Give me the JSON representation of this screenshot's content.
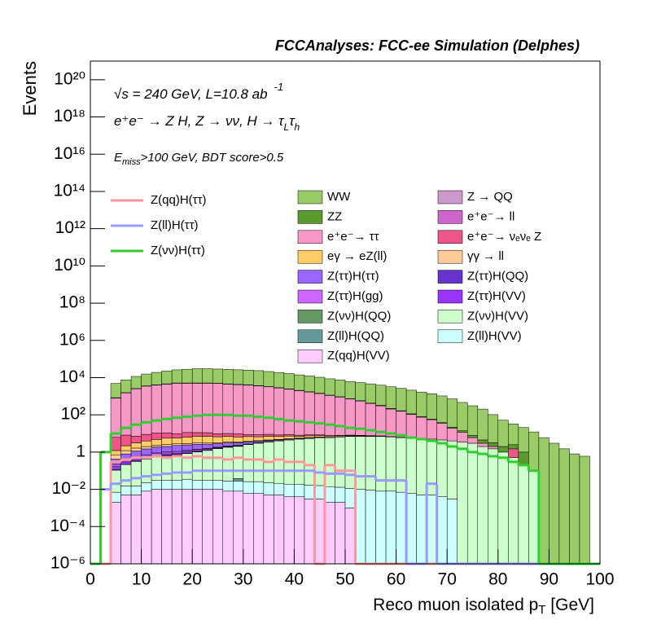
{
  "chart_data": {
    "type": "histogram",
    "stacked": true,
    "log_y": true,
    "title": "FCCAnalyses: FCC-ee Simulation (Delphes)",
    "y_label": "Events",
    "x_label": [
      "Reco muon isolated p",
      "T",
      " [GeV]"
    ],
    "annotations": [
      [
        "√s = 240 GeV, L=10.8 ab",
        "-1"
      ],
      [
        "e⁺e⁻ → Z H, Z → νν, H → τ",
        "L",
        "τ",
        "h"
      ],
      [
        "E",
        "miss",
        ">100 GeV, BDT score>0.5"
      ]
    ],
    "xlim": [
      0,
      100
    ],
    "xticks": [
      0,
      10,
      20,
      30,
      40,
      50,
      60,
      70,
      80,
      90,
      100
    ],
    "ylim": [
      1e-06,
      1e+21
    ],
    "yticks": [
      {
        "value": 1e-06,
        "label": "10⁻⁶"
      },
      {
        "value": 0.0001,
        "label": "10⁻⁴"
      },
      {
        "value": 0.01,
        "label": "10⁻²"
      },
      1,
      {
        "value": 100,
        "label": "10²"
      },
      {
        "value": 10000,
        "label": "10⁴"
      },
      {
        "value": 1000000.0,
        "label": "10⁶"
      },
      {
        "value": 100000000.0,
        "label": "10⁸"
      },
      {
        "value": 10000000000.0,
        "label": "10¹⁰"
      },
      {
        "value": 1000000000000.0,
        "label": "10¹²"
      },
      {
        "value": 100000000000000.0,
        "label": "10¹⁴"
      },
      {
        "value": 1e+16,
        "label": "10¹⁶"
      },
      {
        "value": 1e+18,
        "label": "10¹⁸"
      },
      {
        "value": 1e+20,
        "label": "10²⁰"
      }
    ],
    "bins": [
      0,
      2,
      4,
      6,
      8,
      10,
      12,
      14,
      16,
      18,
      20,
      22,
      24,
      26,
      28,
      30,
      32,
      34,
      36,
      38,
      40,
      42,
      44,
      46,
      48,
      50,
      52,
      54,
      56,
      58,
      60,
      62,
      64,
      66,
      68,
      70,
      72,
      74,
      76,
      78,
      80,
      82,
      84,
      86,
      88,
      90,
      92,
      94,
      96,
      98,
      100
    ],
    "series": [
      {
        "name": "WW",
        "color": "#99cc66",
        "values": [
          0,
          0,
          4000,
          6000,
          9000,
          12000,
          15000,
          18000,
          21000,
          23000,
          25000,
          25000,
          24000,
          23000,
          22000,
          21000,
          20000,
          18000,
          16000,
          14000,
          12000,
          10500,
          9000,
          7500,
          6500,
          5500,
          4800,
          4200,
          3600,
          3000,
          2500,
          2000,
          1600,
          1300,
          1000,
          700,
          450,
          300,
          200,
          100,
          50,
          30,
          20,
          12,
          6,
          3,
          1.5,
          0.8,
          0.6,
          0
        ]
      },
      {
        "name": "Z → QQ",
        "color": "#cc99cc",
        "values": [
          0,
          0,
          0.5,
          1,
          0.8,
          1,
          1.2,
          0.9,
          1,
          0.8,
          1,
          0.7,
          0.9,
          0.6,
          0.5,
          0.8,
          0.4,
          0.5,
          0.3,
          0.4,
          0.3,
          0.2,
          0.3,
          0.2,
          0.1,
          0.1,
          0,
          0,
          0,
          0,
          0,
          0,
          0,
          0,
          0,
          0,
          0,
          0,
          0,
          0,
          0,
          0,
          0,
          0,
          0,
          0,
          0,
          0,
          0,
          0
        ]
      },
      {
        "name": "ZZ",
        "color": "#5a9a2e",
        "values": [
          0,
          0,
          30,
          50,
          80,
          100,
          120,
          140,
          150,
          160,
          160,
          150,
          140,
          130,
          120,
          110,
          100,
          90,
          80,
          70,
          60,
          50,
          45,
          40,
          35,
          30,
          25,
          20,
          16,
          12,
          10,
          8,
          6,
          5,
          4,
          3,
          2.5,
          2,
          1.5,
          1.2,
          1,
          1,
          0.8,
          0,
          0,
          0,
          0,
          0,
          0,
          0
        ]
      },
      {
        "name": "e⁺e⁻→ ll",
        "color": "#cc66cc",
        "values": [
          0,
          0,
          0.3,
          0.5,
          0.6,
          0.4,
          0.5,
          0.7,
          0.5,
          0.6,
          0.4,
          0.5,
          0.3,
          0.4,
          0.3,
          0.2,
          0.3,
          0.2,
          0.2,
          0.1,
          0.1,
          0.1,
          0.1,
          0,
          0,
          0,
          0,
          0,
          0,
          0,
          0,
          0,
          0,
          0,
          0,
          0,
          0,
          0,
          0,
          0,
          0,
          0,
          0,
          0,
          0,
          0,
          0,
          0,
          0,
          0
        ]
      },
      {
        "name": "e⁺e⁻→ ττ",
        "color": "#f799c7",
        "values": [
          0,
          0,
          800,
          1500,
          2500,
          3500,
          4000,
          4500,
          5000,
          5000,
          5000,
          5000,
          4800,
          4500,
          4200,
          4000,
          3600,
          3200,
          2800,
          2400,
          2000,
          1700,
          1400,
          1100,
          900,
          700,
          550,
          400,
          300,
          200,
          150,
          100,
          70,
          50,
          30,
          15,
          8,
          3,
          1,
          0.5,
          0,
          0,
          0,
          0,
          0,
          0,
          0,
          0,
          0,
          0
        ]
      },
      {
        "name": "e⁺e⁻→ νₑνₑ Z",
        "color": "#ee5588",
        "values": [
          0,
          0,
          5,
          6,
          4,
          5,
          6,
          5,
          4,
          5,
          4,
          4,
          3,
          3,
          3,
          2,
          2,
          2,
          1.5,
          1.5,
          1,
          1,
          0.8,
          0.6,
          0.5,
          0.4,
          0.3,
          0.2,
          0.1,
          0.1,
          0.1,
          0,
          0,
          0,
          0,
          0,
          0,
          0,
          0,
          0,
          0,
          1,
          0,
          0,
          0,
          0,
          0,
          0,
          0,
          0
        ]
      },
      {
        "name": "eγ → eZ(ll)",
        "color": "#ffcc66",
        "values": [
          0,
          0,
          0.5,
          1,
          1.5,
          2,
          2.5,
          3,
          3,
          3.5,
          4,
          4,
          3.5,
          3.5,
          3,
          3,
          2.5,
          2.5,
          2,
          2,
          1.5,
          1.5,
          1.2,
          1,
          0.8,
          0.6,
          0.5,
          0.4,
          0.3,
          0.2,
          0.1,
          0.1,
          0,
          0,
          0,
          0,
          0,
          0,
          0,
          0,
          0,
          0,
          0,
          0,
          0,
          0,
          0,
          0,
          0,
          0
        ]
      },
      {
        "name": "γγ → ll",
        "color": "#ffcc99",
        "values": [
          0,
          0,
          0.3,
          0.4,
          0.5,
          0.5,
          0.4,
          0.6,
          0.5,
          0.4,
          0.5,
          0.4,
          0.3,
          0.4,
          0.3,
          0.3,
          0.2,
          0.2,
          0.2,
          0.1,
          0.1,
          0.1,
          0.1,
          0,
          0,
          0,
          0,
          0,
          0,
          0,
          0,
          0,
          0,
          0,
          0,
          0,
          0,
          0,
          0,
          0,
          0,
          0,
          0,
          0,
          0,
          0,
          0,
          0,
          0,
          0
        ]
      },
      {
        "name": "Z(ττ)H(ττ)",
        "color": "#9966ff",
        "values": [
          0,
          0,
          0.2,
          0.4,
          0.6,
          0.8,
          1,
          1,
          1.2,
          1.2,
          1.2,
          1.1,
          1,
          1,
          0.9,
          0.8,
          0.7,
          0.6,
          0.5,
          0.5,
          0.4,
          0.3,
          0.3,
          0.2,
          0.2,
          0.15,
          0.1,
          0.1,
          0.05,
          0.05,
          0.03,
          0.02,
          0.01,
          0,
          0,
          0,
          0,
          0,
          0,
          0,
          0,
          0,
          0,
          0,
          0,
          0,
          0,
          0,
          0,
          0
        ]
      },
      {
        "name": "Z(ττ)H(QQ)",
        "color": "#6633cc",
        "values": [
          0,
          0,
          0,
          0,
          0.01,
          0.005,
          0.02,
          0.01,
          0,
          0.03,
          0.005,
          0.02,
          0.01,
          0.01,
          0.04,
          0,
          0.01,
          0.02,
          0.03,
          0.01,
          0.005,
          0,
          0.01,
          0.01,
          0,
          0.005,
          0.01,
          0,
          0,
          0,
          0,
          0,
          0,
          0,
          0,
          0,
          0,
          0,
          0,
          0,
          0,
          0,
          0,
          0,
          0,
          0,
          0,
          0,
          0,
          0
        ]
      },
      {
        "name": "Z(ττ)H(gg)",
        "color": "#cc66ff",
        "values": [
          0,
          0,
          0.05,
          0.1,
          0.1,
          0.15,
          0.2,
          0.2,
          0.2,
          0.2,
          0.2,
          0.2,
          0.15,
          0.15,
          0.1,
          0.1,
          0.1,
          0.08,
          0.05,
          0.05,
          0.04,
          0.03,
          0.02,
          0.02,
          0.01,
          0.01,
          0,
          0,
          0,
          0,
          0,
          0,
          0,
          0,
          0,
          0,
          0,
          0,
          0,
          0,
          0,
          0,
          0,
          0,
          0,
          0,
          0,
          0,
          0,
          0
        ]
      },
      {
        "name": "Z(ττ)H(VV)",
        "color": "#9933ff",
        "values": [
          0,
          0,
          0.05,
          0.08,
          0.1,
          0.1,
          0.12,
          0.15,
          0.15,
          0.15,
          0.15,
          0.12,
          0.12,
          0.1,
          0.1,
          0.08,
          0.06,
          0.05,
          0.05,
          0.04,
          0.03,
          0.03,
          0.02,
          0.02,
          0.01,
          0.01,
          0.01,
          0,
          0,
          0,
          0,
          0,
          0,
          0,
          0,
          0,
          0,
          0,
          0,
          0,
          0,
          0,
          0,
          0,
          0,
          0,
          0,
          0,
          0,
          0
        ]
      },
      {
        "name": "Z(νν)H(QQ)",
        "color": "#669966",
        "values": [
          0,
          0,
          0.01,
          0.005,
          0.02,
          0.01,
          0.03,
          0.02,
          0.01,
          0.02,
          0.03,
          0.01,
          0.02,
          0.01,
          0.02,
          0.01,
          0.01,
          0.02,
          0.005,
          0.01,
          0.01,
          0.005,
          0.01,
          0,
          0.005,
          0,
          0,
          0,
          0,
          0,
          0,
          0,
          0,
          0,
          0,
          0,
          0,
          0,
          0,
          0,
          0,
          0,
          0,
          0,
          0,
          0,
          0,
          0,
          0,
          0
        ]
      },
      {
        "name": "Z(νν)H(VV)",
        "color": "#ccffcc",
        "values": [
          0,
          0,
          0.1,
          0.2,
          0.3,
          0.4,
          0.5,
          0.6,
          0.7,
          0.8,
          1,
          1.2,
          1.5,
          1.8,
          2,
          2.5,
          3,
          3.5,
          4,
          4.5,
          5,
          5.5,
          6,
          6,
          6.5,
          7,
          7,
          7,
          7,
          6.5,
          6,
          6,
          5.5,
          5,
          4.5,
          4,
          3.5,
          3,
          2,
          1.5,
          1,
          0.5,
          0.2,
          0.1,
          0,
          0,
          0,
          0,
          0,
          0
        ]
      },
      {
        "name": "Z(ll)H(QQ)",
        "color": "#669999",
        "values": [
          0,
          0,
          0,
          0,
          0,
          0,
          0,
          0,
          0,
          0,
          0,
          0,
          0,
          0,
          0.01,
          0,
          0,
          0,
          0,
          0,
          0,
          0,
          0,
          0,
          0,
          0,
          0,
          0,
          0,
          0,
          0,
          0,
          0,
          0,
          0,
          0,
          0,
          0,
          0,
          0,
          0,
          0,
          0,
          0,
          0,
          0,
          0,
          0,
          0,
          0
        ]
      },
      {
        "name": "Z(ll)H(VV)",
        "color": "#ccffff",
        "values": [
          0,
          0,
          0.005,
          0.01,
          0.01,
          0.015,
          0.02,
          0.02,
          0.02,
          0.025,
          0.02,
          0.02,
          0.02,
          0.02,
          0.02,
          0.02,
          0.02,
          0.018,
          0.016,
          0.015,
          0.015,
          0.014,
          0.013,
          0.012,
          0.011,
          0.01,
          0.01,
          0.009,
          0.008,
          0.008,
          0.007,
          0.006,
          0.005,
          0.005,
          0.004,
          0.003,
          0,
          0,
          0,
          0,
          0,
          0,
          0,
          0,
          0,
          0,
          0,
          0,
          0,
          0
        ]
      },
      {
        "name": "Z(qq)H(VV)",
        "color": "#ffccff",
        "values": [
          0,
          0,
          0.002,
          0.005,
          0.005,
          0.008,
          0.01,
          0.01,
          0.01,
          0.01,
          0.01,
          0.01,
          0.01,
          0.008,
          0.008,
          0.006,
          0.006,
          0.005,
          0.005,
          0.004,
          0.004,
          0.003,
          0.003,
          0.002,
          0.002,
          0.001,
          0,
          0,
          0,
          0,
          0,
          0,
          0,
          0,
          0,
          0,
          0,
          0,
          0,
          0,
          0,
          0,
          0,
          0,
          0,
          0,
          0,
          0,
          0,
          0
        ]
      }
    ],
    "lines": [
      {
        "name": "Z(qq)H(ττ)",
        "color": "#ff9999",
        "values": [
          0,
          0,
          0.3,
          0.4,
          0.5,
          0.5,
          0.6,
          0.5,
          0.6,
          0.5,
          0.6,
          0.5,
          0.5,
          0.4,
          0.5,
          0.4,
          0.4,
          0.3,
          0.4,
          0.3,
          0.3,
          0.2,
          0,
          0.2,
          0.1,
          0.1,
          0,
          0,
          0,
          0,
          0,
          0,
          0,
          0,
          0,
          0,
          0,
          0,
          0,
          0,
          0,
          0,
          0,
          0,
          0,
          0,
          0,
          0,
          0,
          0
        ]
      },
      {
        "name": "Z(ll)H(ττ)",
        "color": "#9999ff",
        "values": [
          0,
          0.01,
          0.02,
          0.03,
          0.04,
          0.05,
          0.06,
          0.07,
          0.08,
          0.08,
          0.1,
          0.1,
          0.1,
          0.1,
          0.1,
          0.1,
          0.1,
          0.1,
          0.1,
          0.1,
          0.1,
          0.1,
          0.08,
          0.07,
          0.07,
          0.06,
          0.05,
          0.05,
          0.03,
          0.03,
          0.03,
          0,
          0,
          0.02,
          0,
          0,
          0,
          0,
          0,
          0,
          0,
          0,
          0,
          0,
          0,
          0,
          0,
          0,
          0,
          0
        ]
      },
      {
        "name": "Z(νν)H(ττ)",
        "color": "#33cc33",
        "values": [
          0,
          1,
          10,
          20,
          30,
          40,
          50,
          60,
          70,
          80,
          90,
          100,
          100,
          100,
          90,
          90,
          80,
          70,
          60,
          50,
          45,
          40,
          35,
          30,
          25,
          20,
          18,
          15,
          12,
          10,
          8,
          6,
          5,
          4,
          3,
          2,
          1.5,
          1,
          0.8,
          0.6,
          0.5,
          0.3,
          0.2,
          0.1,
          0,
          0,
          0,
          0,
          0,
          0
        ]
      }
    ]
  }
}
